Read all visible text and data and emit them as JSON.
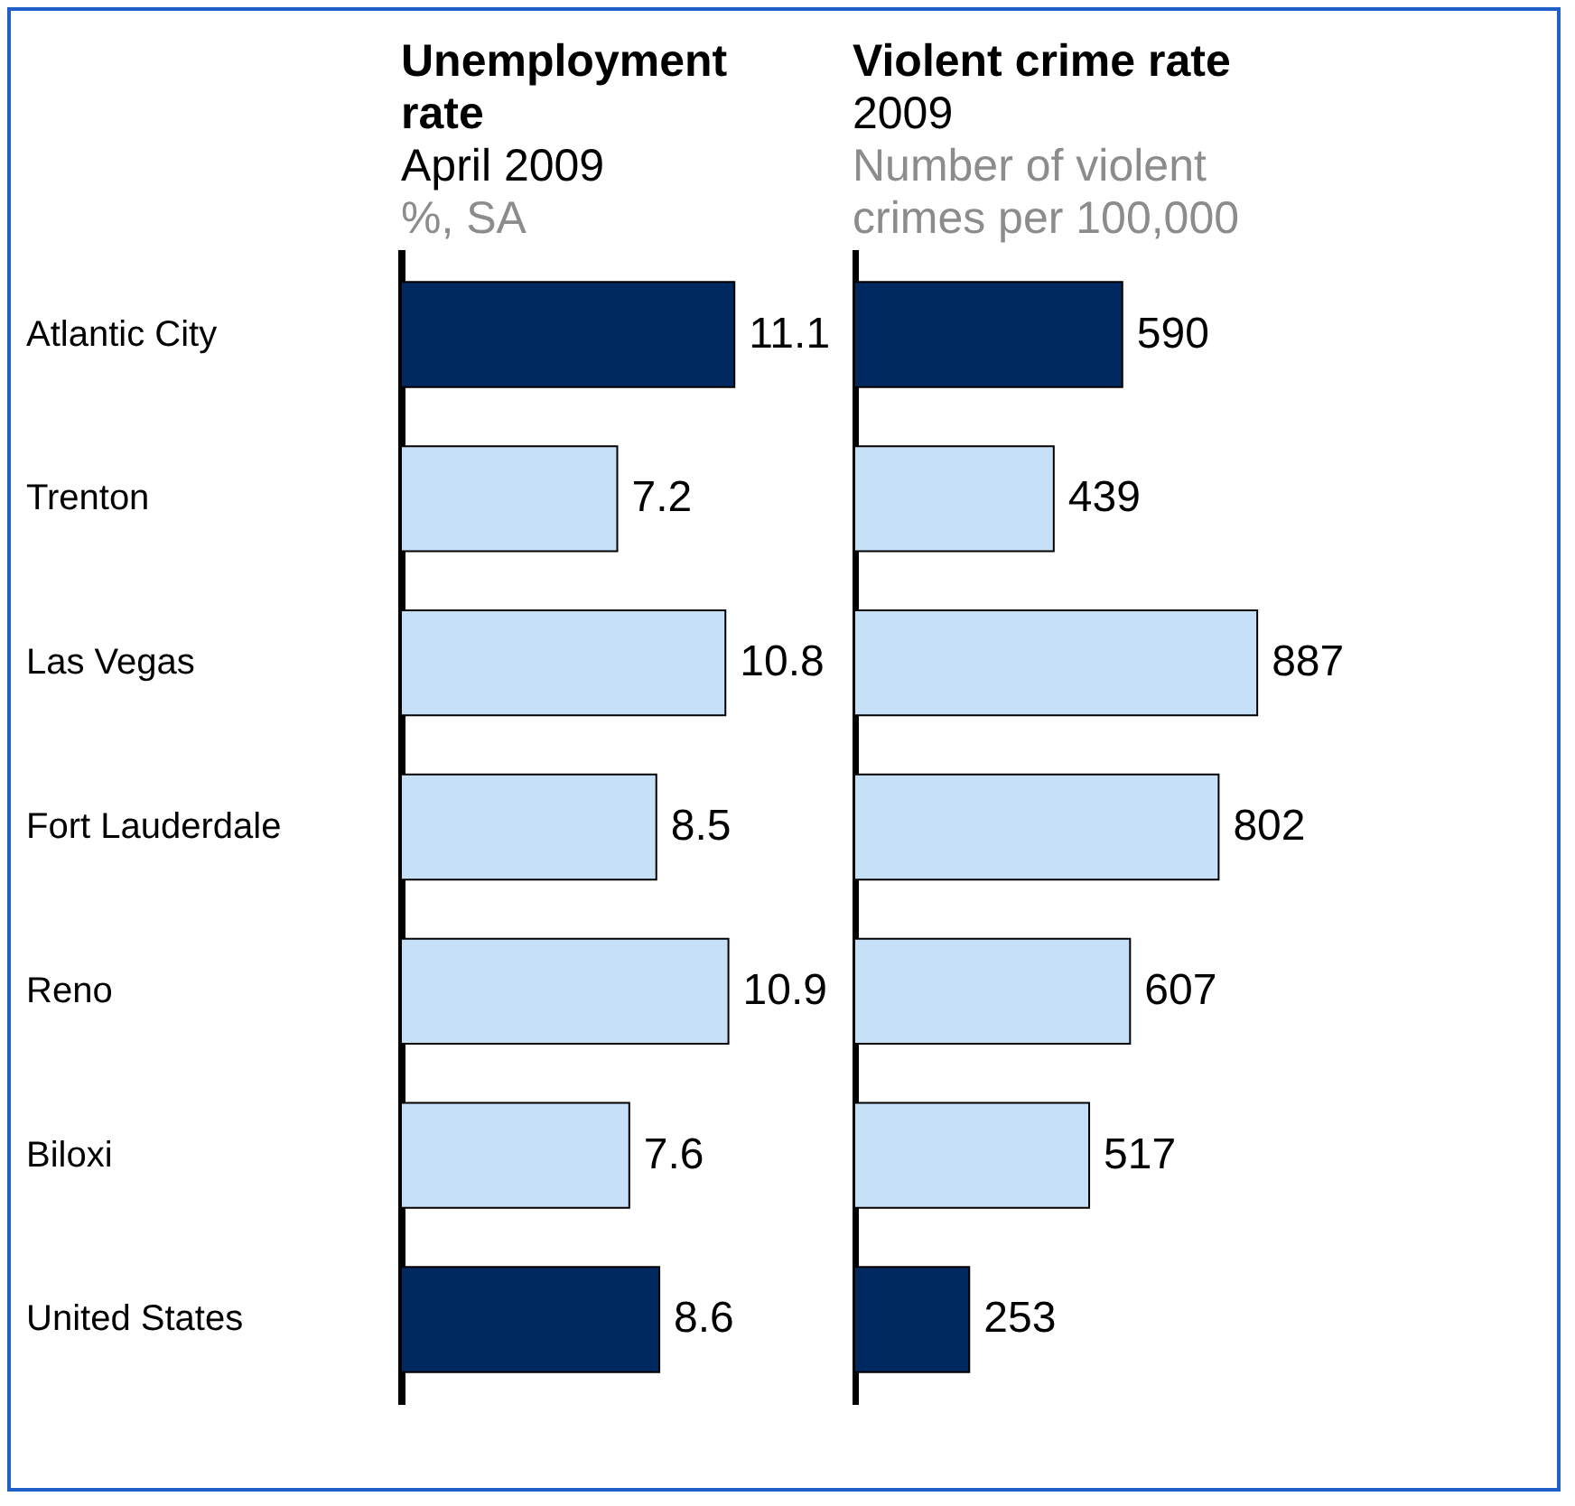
{
  "chart_data": [
    {
      "type": "bar",
      "orientation": "horizontal",
      "title": "Unemployment rate",
      "subtitle": "April 2009",
      "annotations": [
        "%, SA"
      ],
      "categories": [
        "Atlantic City",
        "Trenton",
        "Las Vegas",
        "Fort Lauderdale",
        "Reno",
        "Biloxi",
        "United States"
      ],
      "values": [
        11.1,
        7.2,
        10.8,
        8.5,
        10.9,
        7.6,
        8.6
      ],
      "colors": [
        "#002960",
        "#c6e0f8",
        "#c6e0f8",
        "#c6e0f8",
        "#c6e0f8",
        "#c6e0f8",
        "#002960"
      ],
      "data_labels": true,
      "tick_labels": "y"
    },
    {
      "type": "bar",
      "orientation": "horizontal",
      "title": "Violent crime rate",
      "subtitle": "2009",
      "annotations": [
        "Number of violent crimes per 100,000"
      ],
      "categories": [
        "Atlantic City",
        "Trenton",
        "Las Vegas",
        "Fort Lauderdale",
        "Reno",
        "Biloxi",
        "United States"
      ],
      "values": [
        590,
        439,
        887,
        802,
        607,
        517,
        253
      ],
      "colors": [
        "#002960",
        "#c6e0f8",
        "#c6e0f8",
        "#c6e0f8",
        "#c6e0f8",
        "#c6e0f8",
        "#002960"
      ],
      "data_labels": true,
      "tick_labels": false
    }
  ]
}
